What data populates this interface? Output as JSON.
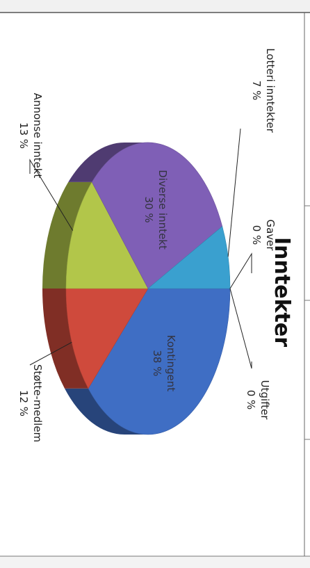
{
  "chart_data": {
    "type": "pie",
    "title": "Inntekter",
    "slices": [
      {
        "label": "Kontingent",
        "value": 38,
        "value_label": "38 %",
        "color": "#3f6ec4"
      },
      {
        "label": "Støtte-medlem",
        "value": 12,
        "value_label": "12 %",
        "color": "#cf4a3c"
      },
      {
        "label": "Annonse inntekt",
        "value": 13,
        "value_label": "13 %",
        "color": "#b2c64a"
      },
      {
        "label": "Diverse inntekt",
        "value": 30,
        "value_label": "30 %",
        "color": "#7f5fb6"
      },
      {
        "label": "Lotteri inntekter",
        "value": 7,
        "value_label": "7 %",
        "color": "#3aa0cf"
      },
      {
        "label": "Gaver",
        "value": 0,
        "value_label": "0 %",
        "color": "#5aa0d8"
      },
      {
        "label": "Utgifter",
        "value": 0,
        "value_label": "0 %",
        "color": "#5a8fd0"
      }
    ],
    "style": "3d-pie",
    "legend": "none",
    "orientation": "rotated-90-clockwise"
  }
}
